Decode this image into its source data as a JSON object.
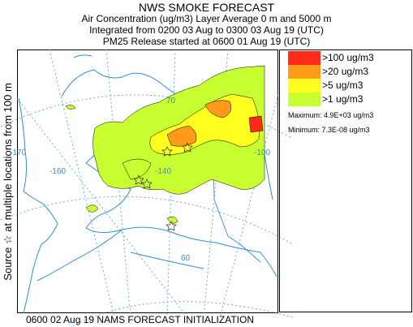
{
  "header": {
    "title": "NWS SMOKE FORECAST",
    "line2": "Air Concentration (ug/m3) Layer Average    0 m  and  5000 m",
    "line3": "Integrated from 0200 03 Aug to 0300 03 Aug 19 (UTC)",
    "line4": "PM25 Release started at 0600 01 Aug 19 (UTC)"
  },
  "side_label": "Source ☆ at multiple locations   from   100 m",
  "map": {
    "graticule_labels": [
      "70",
      "-170",
      "-160",
      "-140",
      "-100",
      "60"
    ],
    "colors": {
      "coast": "#2f8fcf",
      "grid": "#5aa6d8",
      "border": "#2f8fcf"
    }
  },
  "legend": {
    "items": [
      {
        "label": ">100 ug/m3",
        "color": "#ff2a1a"
      },
      {
        "label": ">20 ug/m3",
        "color": "#ff9a1a"
      },
      {
        "label": ">5 ug/m3",
        "color": "#ffff20"
      },
      {
        "label": ">1 ug/m3",
        "color": "#c8ff30"
      }
    ],
    "maximum": "Maximum: 4.9E+03 ug/m3",
    "minimum": "Minimum: 7.3E-08 ug/m3"
  },
  "footer": "0600 02 Aug 19 NAMS FORECAST INITIALIZATION"
}
